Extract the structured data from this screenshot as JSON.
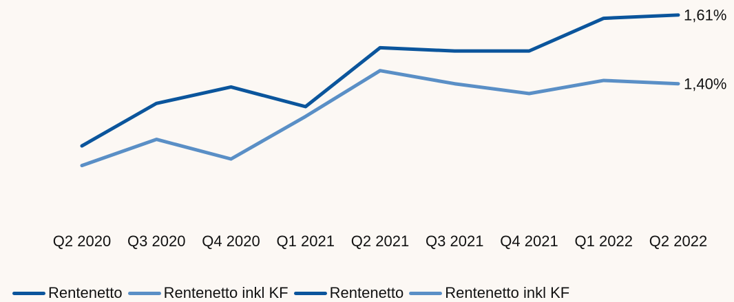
{
  "chart_data": {
    "type": "line",
    "categories": [
      "Q2 2020",
      "Q3 2020",
      "Q4 2020",
      "Q1 2021",
      "Q2 2021",
      "Q3 2021",
      "Q4 2021",
      "Q1 2022",
      "Q2 2022"
    ],
    "series": [
      {
        "name": "Rentenetto",
        "color": "#0b559c",
        "values": [
          1.21,
          1.34,
          1.39,
          1.33,
          1.51,
          1.5,
          1.5,
          1.6,
          1.61
        ]
      },
      {
        "name": "Rentenetto inkl KF",
        "color": "#5a8fc6",
        "values": [
          1.15,
          1.23,
          1.17,
          1.3,
          1.44,
          1.4,
          1.37,
          1.41,
          1.4
        ]
      },
      {
        "name": "Rentenetto",
        "color": "#0b559c",
        "values": [
          null,
          null,
          null,
          null,
          null,
          null,
          null,
          null,
          1.61
        ],
        "value_labels": [
          null,
          null,
          null,
          null,
          null,
          null,
          null,
          null,
          "1,61%"
        ]
      },
      {
        "name": "Rentenetto inkl KF",
        "color": "#5a8fc6",
        "values": [
          null,
          null,
          null,
          null,
          null,
          null,
          null,
          null,
          1.4
        ],
        "value_labels": [
          null,
          null,
          null,
          null,
          null,
          null,
          null,
          null,
          "1,40%"
        ]
      }
    ],
    "ylim": [
      1.0,
      1.7
    ]
  }
}
